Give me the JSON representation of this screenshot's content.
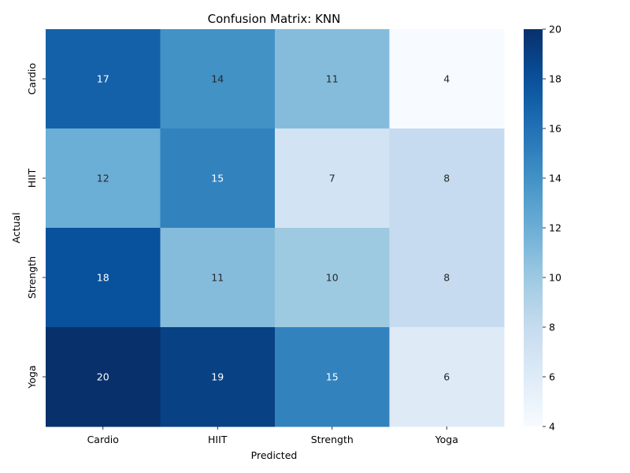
{
  "chart_data": {
    "type": "heatmap",
    "title": "Confusion Matrix: KNN",
    "xlabel": "Predicted",
    "ylabel": "Actual",
    "x_categories": [
      "Cardio",
      "HIIT",
      "Strength",
      "Yoga"
    ],
    "y_categories": [
      "Cardio",
      "HIIT",
      "Strength",
      "Yoga"
    ],
    "values": [
      [
        17,
        14,
        11,
        4
      ],
      [
        12,
        15,
        7,
        8
      ],
      [
        18,
        11,
        10,
        8
      ],
      [
        20,
        19,
        15,
        6
      ]
    ],
    "colorbar": {
      "min": 4,
      "max": 20,
      "ticks": [
        4,
        6,
        8,
        10,
        12,
        14,
        16,
        18,
        20
      ]
    },
    "colormap": "Blues",
    "colors": {
      "low": "#f7fbff",
      "high": "#08306b"
    }
  }
}
